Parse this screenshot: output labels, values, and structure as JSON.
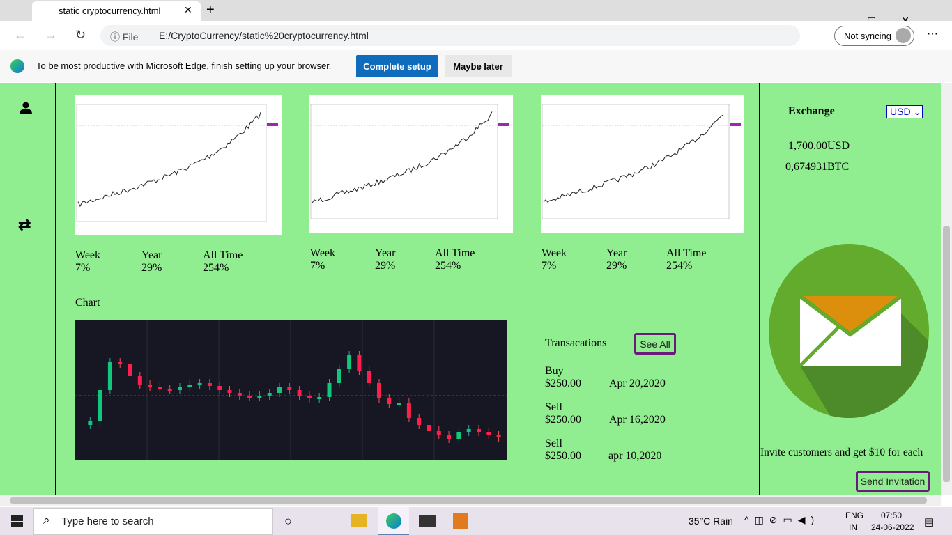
{
  "browser": {
    "tab_title": "static cryptocurrency.html",
    "url_scheme": "File",
    "url": "E:/CryptoCurrency/static%20cryptocurrency.html",
    "profile": "Not syncing"
  },
  "banner": {
    "message": "To be most productive with Microsoft Edge, finish setting up your browser.",
    "primary_button": "Complete setup",
    "secondary_button": "Maybe later"
  },
  "cards": [
    {
      "stats": [
        {
          "label": "Week",
          "value": "7%"
        },
        {
          "label": "Year",
          "value": "29%"
        },
        {
          "label": "All Time",
          "value": "254%"
        }
      ]
    },
    {
      "stats": [
        {
          "label": "Week",
          "value": "7%"
        },
        {
          "label": "Year",
          "value": "29%"
        },
        {
          "label": "All Time",
          "value": "254%"
        }
      ]
    },
    {
      "stats": [
        {
          "label": "Week",
          "value": "7%"
        },
        {
          "label": "Year",
          "value": "29%"
        },
        {
          "label": "All Time",
          "value": "254%"
        }
      ]
    }
  ],
  "chart": {
    "title": "Chart"
  },
  "transactions": {
    "title": "Transacations",
    "see_all": "See All",
    "items": [
      {
        "type": "Buy",
        "amount": "$250.00",
        "date": "Apr 20,2020"
      },
      {
        "type": "Sell",
        "amount": "$250.00",
        "date": "Apr 16,2020"
      },
      {
        "type": "Sell",
        "amount": "$250.00",
        "date": "apr 10,2020"
      }
    ]
  },
  "exchange": {
    "title": "Exchange",
    "currency": "USD",
    "fiat": "1,700.00USD",
    "crypto": "0,674931BTC"
  },
  "invite": {
    "text": "Invite customers and get $10 for each",
    "button": "Send Invitation"
  },
  "taskbar": {
    "search": "Type here to search",
    "weather": "35°C Rain",
    "lang": "ENG",
    "region": "IN",
    "time": "07:50",
    "date": "24-06-2022"
  }
}
